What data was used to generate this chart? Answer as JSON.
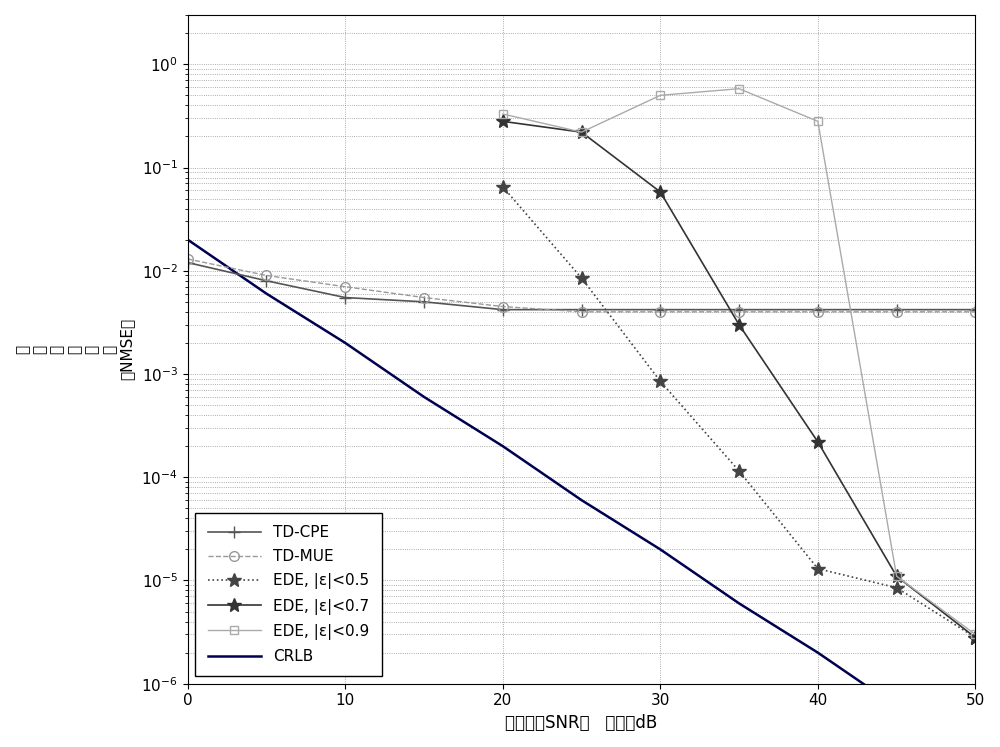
{
  "td_cpe_x": [
    0,
    5,
    10,
    15,
    20,
    25,
    30,
    35,
    40,
    45,
    50
  ],
  "td_cpe_y": [
    0.012,
    0.008,
    0.0055,
    0.005,
    0.0042,
    0.0042,
    0.0042,
    0.0042,
    0.0042,
    0.0042,
    0.0042
  ],
  "td_cpe_color": "#555555",
  "td_cpe_ls": "-",
  "td_cpe_marker": "+",
  "td_cpe_ms": 8,
  "td_cpe_lw": 1.2,
  "td_cpe_label": "TD-CPE",
  "td_mue_x": [
    0,
    5,
    10,
    15,
    20,
    25,
    30,
    35,
    40,
    45,
    50
  ],
  "td_mue_y": [
    0.013,
    0.009,
    0.007,
    0.0055,
    0.0045,
    0.004,
    0.004,
    0.004,
    0.004,
    0.004,
    0.004
  ],
  "td_mue_color": "#999999",
  "td_mue_ls": "--",
  "td_mue_marker": "o",
  "td_mue_ms": 7,
  "td_mue_lw": 1.0,
  "td_mue_label": "TD-MUE",
  "ede05_x": [
    20,
    25,
    30,
    35,
    40,
    45,
    50
  ],
  "ede05_y": [
    0.065,
    0.0085,
    0.00085,
    0.000115,
    1.3e-05,
    8.5e-06,
    2.8e-06
  ],
  "ede05_color": "#444444",
  "ede05_ls": ":",
  "ede05_marker": "*",
  "ede05_ms": 10,
  "ede05_lw": 1.2,
  "ede05_label": "EDE, |e|<0.5",
  "ede07_x": [
    20,
    25,
    30,
    35,
    40,
    45,
    50
  ],
  "ede07_y": [
    0.28,
    0.22,
    0.058,
    0.003,
    0.00022,
    1.1e-05,
    2.8e-06
  ],
  "ede07_color": "#333333",
  "ede07_ls": "-",
  "ede07_marker": "*",
  "ede07_ms": 10,
  "ede07_lw": 1.2,
  "ede07_label": "EDE, |e|<0.7",
  "ede09_x": [
    20,
    25,
    30,
    35,
    40,
    45,
    50
  ],
  "ede09_y": [
    0.33,
    0.22,
    0.5,
    0.58,
    0.28,
    1.1e-05,
    3e-06
  ],
  "ede09_color": "#aaaaaa",
  "ede09_ls": "-",
  "ede09_marker": "s",
  "ede09_ms": 6,
  "ede09_lw": 1.0,
  "ede09_label": "EDE, |e|<0.9",
  "crlb_x": [
    0,
    5,
    10,
    15,
    20,
    25,
    30,
    35,
    40,
    45,
    50
  ],
  "crlb_y": [
    0.02,
    0.006,
    0.002,
    0.0006,
    0.0002,
    6e-05,
    2e-05,
    6e-06,
    2e-06,
    6e-07,
    1.8e-07
  ],
  "crlb_color": "#000050",
  "crlb_ls": "-",
  "crlb_lw": 1.8,
  "crlb_label": "CRLB",
  "xlim": [
    0,
    50
  ],
  "ylim": [
    1e-06,
    3
  ],
  "xticks": [
    0,
    10,
    20,
    30,
    40,
    50
  ],
  "figsize": [
    10.0,
    7.47
  ],
  "dpi": 100
}
